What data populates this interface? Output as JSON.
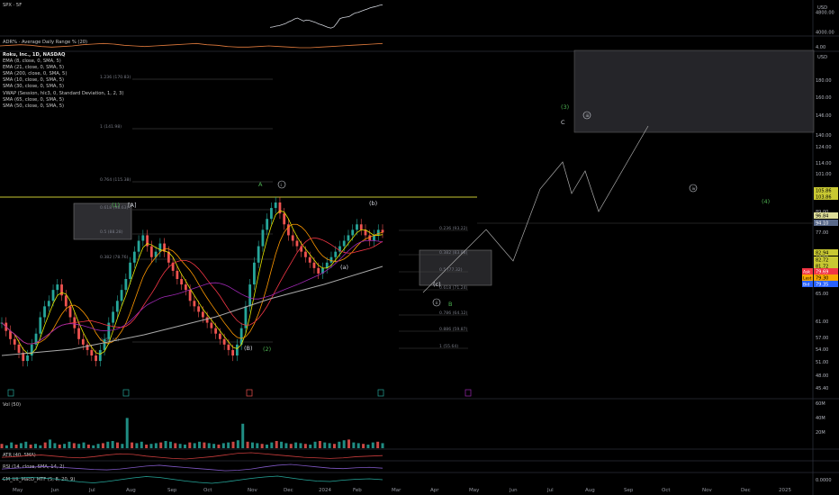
{
  "chart_data": [
    {
      "type": "line",
      "pane": "spx",
      "title": "SPX · 5F",
      "price_scale": {
        "currency": "USD",
        "ticks": [
          4800.0,
          4000.0
        ],
        "last": 5100
      },
      "series": [
        {
          "name": "SPX",
          "color": "#d1d4dc",
          "values": [
            4180,
            4200,
            4230,
            4250,
            4290,
            4330,
            4400,
            4450,
            4520,
            4560,
            4500,
            4440,
            4480,
            4460,
            4420,
            4380,
            4320,
            4280,
            4230,
            4180,
            4150,
            4200,
            4360,
            4540,
            4580,
            4600,
            4620,
            4700,
            4770,
            4790,
            4840,
            4890,
            4930,
            4980,
            5010,
            5040,
            5080,
            5100
          ]
        }
      ]
    },
    {
      "type": "line",
      "pane": "adr",
      "title": "ADR% · Average Daily Range % (20)",
      "price_scale": {
        "ticks": [
          "4.00"
        ]
      },
      "series": [
        {
          "name": "ADR%",
          "color": "#e07a3c",
          "values": [
            3.6,
            3.7,
            3.8,
            3.7,
            3.5,
            3.4,
            3.5,
            3.6,
            3.8,
            3.9,
            4.0,
            3.9,
            3.7,
            3.6,
            3.5,
            3.6,
            3.7,
            3.8,
            3.9,
            4.0,
            3.8,
            3.7,
            3.5,
            3.4,
            3.4,
            3.5,
            3.6,
            3.5,
            3.4,
            3.3,
            3.3,
            3.4,
            3.5,
            3.6,
            3.7,
            3.8,
            3.9,
            4.0
          ]
        }
      ]
    },
    {
      "type": "candlestick",
      "pane": "price",
      "title": "Roku, Inc., 1D, NASDAQ",
      "indicators": [
        "EMA (8, close, 0, SMA, 5)",
        "EMA (21, close, 0, SMA, 5)",
        "SMA (200, close, 0, SMA, 5)",
        "SMA (10, close, 0, SMA, 5)",
        "SMA (30, close, 0, SMA, 5)",
        "VWAP (Session, hlc3, 0, Standard Deviation, 1, 2, 3)",
        "SMA (65, close, 0, SMA, 5)",
        "SMA (50, close, 0, SMA, 5)"
      ],
      "price_scale": {
        "currency": "USD",
        "ticks": [
          180.0,
          160.0,
          146.0,
          140.0,
          124.0,
          114.0,
          101.0,
          89.0,
          77.0,
          73.0,
          69.0,
          65.0,
          61.0,
          57.0,
          54.0,
          51.0,
          48.0,
          45.4
        ],
        "highlighted": [
          {
            "value": "105.86",
            "bg": "#c8c832",
            "fg": "#000000"
          },
          {
            "value": "103.86",
            "bg": "#c8c832",
            "fg": "#000000"
          },
          {
            "value": "96.84",
            "bg": "#dddd99",
            "fg": "#000000"
          },
          {
            "value": "94.10",
            "bg": "#5a6a8a",
            "fg": "#ffffff"
          },
          {
            "value": "82.94",
            "bg": "#c8c832",
            "fg": "#000000"
          },
          {
            "value": "82.72",
            "bg": "#c8c832",
            "fg": "#000000"
          },
          {
            "value": "81.72",
            "bg": "#c8c832",
            "fg": "#000000"
          },
          {
            "value": "79.69",
            "bg": "#f23645",
            "fg": "#ffffff",
            "tag": "Ask"
          },
          {
            "value": "79.30",
            "bg": "#f7a600",
            "fg": "#000000",
            "tag": "Last"
          },
          {
            "value": "79.35",
            "bg": "#2962ff",
            "fg": "#ffffff",
            "tag": "Bid"
          }
        ]
      },
      "x_axis": [
        "May",
        "Jun",
        "Jul",
        "Aug",
        "Sep",
        "Oct",
        "Nov",
        "Dec",
        "2024",
        "Feb",
        "Mar",
        "Apr",
        "May",
        "Jun",
        "Jul",
        "Aug",
        "Sep",
        "Oct",
        "Nov",
        "Dec",
        "2025"
      ],
      "fib_levels": [
        "1.236 (170.83)",
        "1 (141.98)",
        "0.764 (115.38)",
        "0.618 (98.63)",
        "0.5 (88.28)",
        "0.382 (78.76)",
        "0 (58.02)"
      ],
      "fib_levels_right": [
        "0.236 (93.22)",
        "0.382 (83.88)",
        "0.5 (77.32)",
        "0.618 (71.24)",
        "0.786 (64.12)",
        "0.886 (59.87)",
        "1 (55.64)"
      ],
      "wave_labels": [
        "(1)",
        "[A]",
        "(B)",
        "(2)",
        "A",
        "i",
        "(a)",
        "(b)",
        "(c)",
        "ii",
        "B",
        "(3)",
        "C",
        "iii",
        "iv",
        "(4)"
      ],
      "legend_position": "top-left"
    },
    {
      "type": "bar",
      "pane": "volume",
      "title": "Vol (50)",
      "price_scale": {
        "ticks": [
          "60M",
          "40M",
          "20M"
        ]
      },
      "series": [
        {
          "name": "Vol",
          "values": [
            6,
            4,
            8,
            5,
            7,
            9,
            5,
            6,
            4,
            8,
            12,
            7,
            5,
            6,
            9,
            7,
            6,
            8,
            5,
            4,
            6,
            7,
            9,
            10,
            8,
            6,
            42,
            8,
            7,
            9,
            5,
            6,
            7,
            8,
            10,
            9,
            7,
            6,
            5,
            8,
            7,
            9,
            8,
            7,
            6,
            5,
            7,
            8,
            9,
            11,
            34,
            9,
            8,
            7,
            6,
            5,
            8,
            10,
            9,
            7,
            6,
            8,
            7,
            6,
            5,
            9,
            10,
            8,
            7,
            6,
            9,
            11,
            12,
            8,
            7,
            6,
            5,
            8,
            9,
            7
          ]
        }
      ]
    },
    {
      "type": "line",
      "pane": "atr",
      "title": "ATR (40, SMA)",
      "series": [
        {
          "name": "ATR",
          "color": "#c83c3c",
          "values": [
            4.2,
            4.3,
            4.5,
            4.6,
            4.4,
            4.2,
            4.1,
            4.3,
            4.6,
            4.8,
            4.7,
            4.4,
            4.2,
            4.0,
            3.9,
            4.1,
            4.3,
            4.6,
            4.9,
            5.0,
            4.8,
            4.6,
            4.4,
            4.2,
            4.1,
            4.0,
            4.1,
            4.3,
            4.4,
            4.5
          ]
        }
      ]
    },
    {
      "type": "line",
      "pane": "rsi",
      "title": "RSI (14, close, SMA, 14, 2)",
      "series": [
        {
          "name": "RSI",
          "color": "#7e57c2",
          "values": [
            48,
            52,
            55,
            60,
            58,
            54,
            50,
            46,
            44,
            48,
            55,
            62,
            66,
            60,
            55,
            50,
            45,
            40,
            42,
            48,
            58,
            66,
            70,
            64,
            58,
            52,
            50,
            54,
            56,
            52
          ]
        }
      ]
    },
    {
      "type": "line",
      "pane": "macd",
      "title": "CM_Ult_MacD_MTF (5, 8, 20, 9)",
      "price_scale": {
        "ticks": [
          "0.0000"
        ]
      },
      "series": [
        {
          "name": "MACD",
          "color": "#26a69a",
          "values": [
            0.2,
            0.4,
            0.6,
            0.5,
            0.3,
            -0.1,
            -0.4,
            -0.6,
            -0.3,
            0.1,
            0.5,
            0.8,
            0.6,
            0.2,
            -0.2,
            -0.5,
            -0.7,
            -0.4,
            0.0,
            0.4,
            0.7,
            0.9,
            0.5,
            0.1,
            -0.2,
            -0.3,
            0.0,
            0.2,
            0.3,
            0.1
          ]
        }
      ]
    }
  ]
}
